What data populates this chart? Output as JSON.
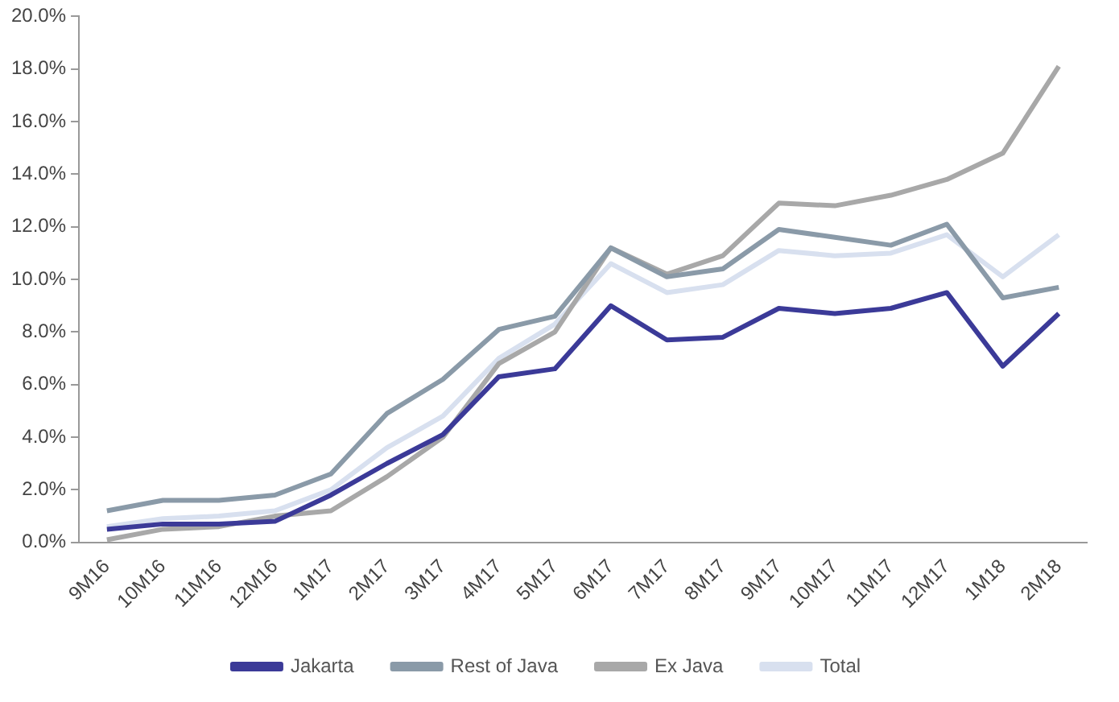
{
  "chart_data": {
    "type": "line",
    "categories": [
      "9M16",
      "10M16",
      "11M16",
      "12M16",
      "1M17",
      "2M17",
      "3M17",
      "4M17",
      "5M17",
      "6M17",
      "7M17",
      "8M17",
      "9M17",
      "10M17",
      "11M17",
      "12M17",
      "1M18",
      "2M18"
    ],
    "series": [
      {
        "name": "Jakarta",
        "color": "#3b3a98",
        "values": [
          0.5,
          0.7,
          0.7,
          0.8,
          1.8,
          3.0,
          4.1,
          6.3,
          6.6,
          9.0,
          7.7,
          7.8,
          8.9,
          8.7,
          8.9,
          9.5,
          6.7,
          8.7
        ]
      },
      {
        "name": "Rest of Java",
        "color": "#8a9aa8",
        "values": [
          1.2,
          1.6,
          1.6,
          1.8,
          2.6,
          4.9,
          6.2,
          8.1,
          8.6,
          11.2,
          10.1,
          10.4,
          11.9,
          11.6,
          11.3,
          12.1,
          9.3,
          9.7
        ]
      },
      {
        "name": "Ex Java",
        "color": "#a8a8a8",
        "values": [
          0.1,
          0.5,
          0.6,
          1.0,
          1.2,
          2.5,
          4.0,
          6.8,
          8.0,
          11.2,
          10.2,
          10.9,
          12.9,
          12.8,
          13.2,
          13.8,
          14.8,
          18.1
        ]
      },
      {
        "name": "Total",
        "color": "#d8e0ef",
        "values": [
          0.6,
          0.9,
          1.0,
          1.2,
          2.0,
          3.6,
          4.8,
          7.0,
          8.3,
          10.6,
          9.5,
          9.8,
          11.1,
          10.9,
          11.0,
          11.7,
          10.1,
          11.7
        ]
      }
    ],
    "ylim": [
      0,
      20
    ],
    "yticks": [
      {
        "value": 0,
        "label": "0.0%"
      },
      {
        "value": 2,
        "label": "2.0%"
      },
      {
        "value": 4,
        "label": "4.0%"
      },
      {
        "value": 6,
        "label": "6.0%"
      },
      {
        "value": 8,
        "label": "8.0%"
      },
      {
        "value": 10,
        "label": "10.0%"
      },
      {
        "value": 12,
        "label": "12.0%"
      },
      {
        "value": 14,
        "label": "14.0%"
      },
      {
        "value": 16,
        "label": "16.0%"
      },
      {
        "value": 18,
        "label": "18.0%"
      },
      {
        "value": 20,
        "label": "20.0%"
      }
    ],
    "grid": false,
    "legend": "bottom",
    "marker": "none",
    "line_style": "solid"
  }
}
